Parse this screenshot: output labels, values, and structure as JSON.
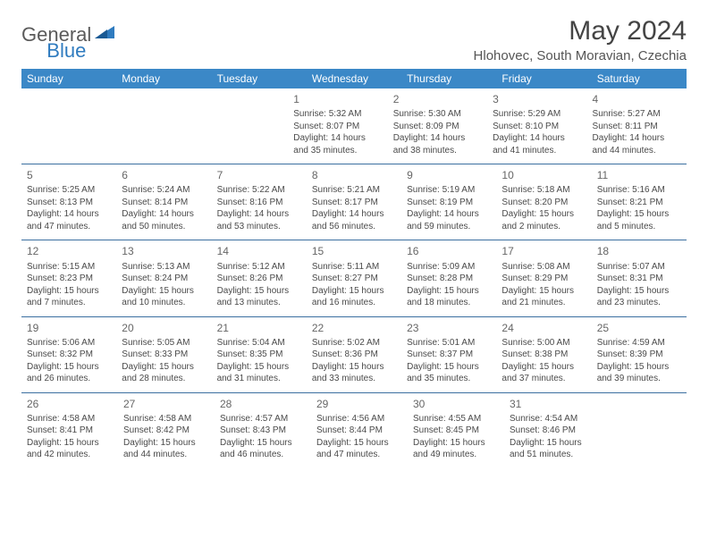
{
  "logo": {
    "general": "General",
    "blue": "Blue"
  },
  "title": "May 2024",
  "location": "Hlohovec, South Moravian, Czechia",
  "weekday_header_bg": "#3b88c7",
  "row_border_color": "#3b6fa0",
  "weekdays": [
    "Sunday",
    "Monday",
    "Tuesday",
    "Wednesday",
    "Thursday",
    "Friday",
    "Saturday"
  ],
  "weeks": [
    [
      null,
      null,
      null,
      {
        "n": "1",
        "sunrise": "Sunrise: 5:32 AM",
        "sunset": "Sunset: 8:07 PM",
        "daylight": "Daylight: 14 hours and 35 minutes."
      },
      {
        "n": "2",
        "sunrise": "Sunrise: 5:30 AM",
        "sunset": "Sunset: 8:09 PM",
        "daylight": "Daylight: 14 hours and 38 minutes."
      },
      {
        "n": "3",
        "sunrise": "Sunrise: 5:29 AM",
        "sunset": "Sunset: 8:10 PM",
        "daylight": "Daylight: 14 hours and 41 minutes."
      },
      {
        "n": "4",
        "sunrise": "Sunrise: 5:27 AM",
        "sunset": "Sunset: 8:11 PM",
        "daylight": "Daylight: 14 hours and 44 minutes."
      }
    ],
    [
      {
        "n": "5",
        "sunrise": "Sunrise: 5:25 AM",
        "sunset": "Sunset: 8:13 PM",
        "daylight": "Daylight: 14 hours and 47 minutes."
      },
      {
        "n": "6",
        "sunrise": "Sunrise: 5:24 AM",
        "sunset": "Sunset: 8:14 PM",
        "daylight": "Daylight: 14 hours and 50 minutes."
      },
      {
        "n": "7",
        "sunrise": "Sunrise: 5:22 AM",
        "sunset": "Sunset: 8:16 PM",
        "daylight": "Daylight: 14 hours and 53 minutes."
      },
      {
        "n": "8",
        "sunrise": "Sunrise: 5:21 AM",
        "sunset": "Sunset: 8:17 PM",
        "daylight": "Daylight: 14 hours and 56 minutes."
      },
      {
        "n": "9",
        "sunrise": "Sunrise: 5:19 AM",
        "sunset": "Sunset: 8:19 PM",
        "daylight": "Daylight: 14 hours and 59 minutes."
      },
      {
        "n": "10",
        "sunrise": "Sunrise: 5:18 AM",
        "sunset": "Sunset: 8:20 PM",
        "daylight": "Daylight: 15 hours and 2 minutes."
      },
      {
        "n": "11",
        "sunrise": "Sunrise: 5:16 AM",
        "sunset": "Sunset: 8:21 PM",
        "daylight": "Daylight: 15 hours and 5 minutes."
      }
    ],
    [
      {
        "n": "12",
        "sunrise": "Sunrise: 5:15 AM",
        "sunset": "Sunset: 8:23 PM",
        "daylight": "Daylight: 15 hours and 7 minutes."
      },
      {
        "n": "13",
        "sunrise": "Sunrise: 5:13 AM",
        "sunset": "Sunset: 8:24 PM",
        "daylight": "Daylight: 15 hours and 10 minutes."
      },
      {
        "n": "14",
        "sunrise": "Sunrise: 5:12 AM",
        "sunset": "Sunset: 8:26 PM",
        "daylight": "Daylight: 15 hours and 13 minutes."
      },
      {
        "n": "15",
        "sunrise": "Sunrise: 5:11 AM",
        "sunset": "Sunset: 8:27 PM",
        "daylight": "Daylight: 15 hours and 16 minutes."
      },
      {
        "n": "16",
        "sunrise": "Sunrise: 5:09 AM",
        "sunset": "Sunset: 8:28 PM",
        "daylight": "Daylight: 15 hours and 18 minutes."
      },
      {
        "n": "17",
        "sunrise": "Sunrise: 5:08 AM",
        "sunset": "Sunset: 8:29 PM",
        "daylight": "Daylight: 15 hours and 21 minutes."
      },
      {
        "n": "18",
        "sunrise": "Sunrise: 5:07 AM",
        "sunset": "Sunset: 8:31 PM",
        "daylight": "Daylight: 15 hours and 23 minutes."
      }
    ],
    [
      {
        "n": "19",
        "sunrise": "Sunrise: 5:06 AM",
        "sunset": "Sunset: 8:32 PM",
        "daylight": "Daylight: 15 hours and 26 minutes."
      },
      {
        "n": "20",
        "sunrise": "Sunrise: 5:05 AM",
        "sunset": "Sunset: 8:33 PM",
        "daylight": "Daylight: 15 hours and 28 minutes."
      },
      {
        "n": "21",
        "sunrise": "Sunrise: 5:04 AM",
        "sunset": "Sunset: 8:35 PM",
        "daylight": "Daylight: 15 hours and 31 minutes."
      },
      {
        "n": "22",
        "sunrise": "Sunrise: 5:02 AM",
        "sunset": "Sunset: 8:36 PM",
        "daylight": "Daylight: 15 hours and 33 minutes."
      },
      {
        "n": "23",
        "sunrise": "Sunrise: 5:01 AM",
        "sunset": "Sunset: 8:37 PM",
        "daylight": "Daylight: 15 hours and 35 minutes."
      },
      {
        "n": "24",
        "sunrise": "Sunrise: 5:00 AM",
        "sunset": "Sunset: 8:38 PM",
        "daylight": "Daylight: 15 hours and 37 minutes."
      },
      {
        "n": "25",
        "sunrise": "Sunrise: 4:59 AM",
        "sunset": "Sunset: 8:39 PM",
        "daylight": "Daylight: 15 hours and 39 minutes."
      }
    ],
    [
      {
        "n": "26",
        "sunrise": "Sunrise: 4:58 AM",
        "sunset": "Sunset: 8:41 PM",
        "daylight": "Daylight: 15 hours and 42 minutes."
      },
      {
        "n": "27",
        "sunrise": "Sunrise: 4:58 AM",
        "sunset": "Sunset: 8:42 PM",
        "daylight": "Daylight: 15 hours and 44 minutes."
      },
      {
        "n": "28",
        "sunrise": "Sunrise: 4:57 AM",
        "sunset": "Sunset: 8:43 PM",
        "daylight": "Daylight: 15 hours and 46 minutes."
      },
      {
        "n": "29",
        "sunrise": "Sunrise: 4:56 AM",
        "sunset": "Sunset: 8:44 PM",
        "daylight": "Daylight: 15 hours and 47 minutes."
      },
      {
        "n": "30",
        "sunrise": "Sunrise: 4:55 AM",
        "sunset": "Sunset: 8:45 PM",
        "daylight": "Daylight: 15 hours and 49 minutes."
      },
      {
        "n": "31",
        "sunrise": "Sunrise: 4:54 AM",
        "sunset": "Sunset: 8:46 PM",
        "daylight": "Daylight: 15 hours and 51 minutes."
      },
      null
    ]
  ]
}
